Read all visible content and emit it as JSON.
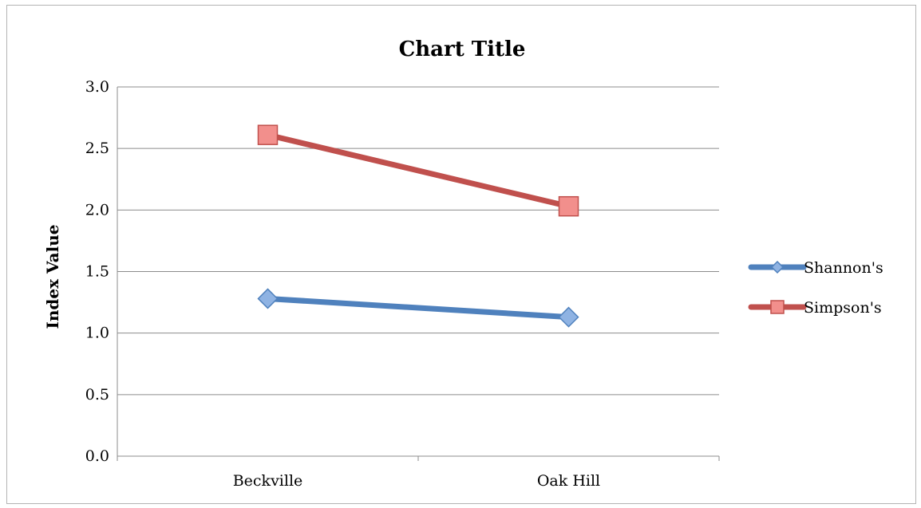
{
  "chart_data": {
    "type": "line",
    "title": "Chart Title",
    "xlabel": "",
    "ylabel": "Index Value",
    "categories": [
      "Beckville",
      "Oak Hill"
    ],
    "ylim": [
      0,
      3
    ],
    "yticks": [
      0,
      0.5,
      1,
      1.5,
      2,
      2.5,
      3
    ],
    "ytick_labels": [
      "0.0",
      "0.5",
      "1.0",
      "1.5",
      "2.0",
      "2.5",
      "3.0"
    ],
    "grid": true,
    "legend_position": "right",
    "series": [
      {
        "name": "Shannon's",
        "values": [
          1.28,
          1.13
        ],
        "color": "#4f81bd",
        "marker": "diamond",
        "marker_fill": "#8fb3e3"
      },
      {
        "name": "Simpson's",
        "values": [
          2.61,
          2.03
        ],
        "color": "#c0504d",
        "marker": "square",
        "marker_fill": "#f28f8c"
      }
    ]
  }
}
